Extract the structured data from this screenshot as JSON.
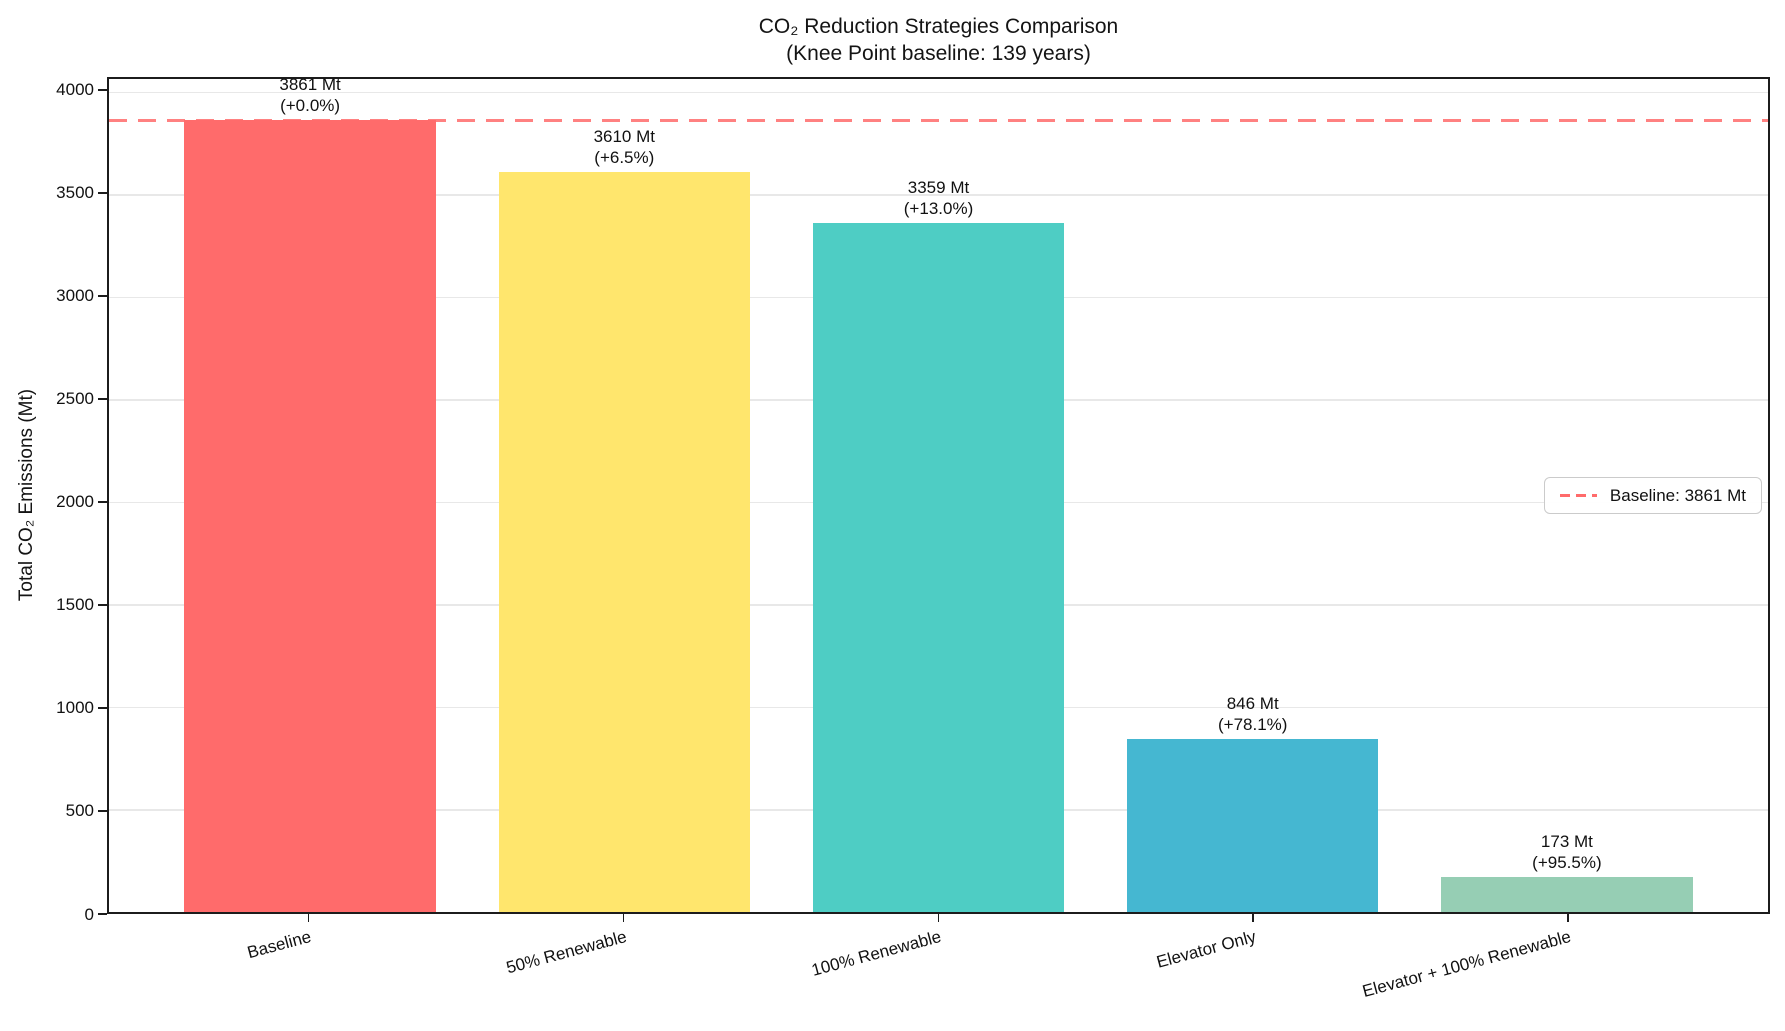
{
  "chart_data": {
    "type": "bar",
    "title": "CO₂ Reduction Strategies Comparison",
    "subtitle": "(Knee Point baseline: 139 years)",
    "xlabel": "",
    "ylabel": "Total CO₂ Emissions (Mt)",
    "ylim": [
      0,
      4063
    ],
    "yticks": [
      0,
      500,
      1000,
      1500,
      2000,
      2500,
      3000,
      3500,
      4000
    ],
    "grid": true,
    "categories": [
      "Baseline",
      "50% Renewable",
      "100% Renewable",
      "Elevator Only",
      "Elevator + 100% Renewable"
    ],
    "values": [
      3861,
      3610,
      3359,
      846,
      173
    ],
    "bars": [
      {
        "category": "Baseline",
        "value": 3861,
        "value_label": "3861 Mt",
        "pct_label": "(+0.0%)",
        "color": "#FF6B6B"
      },
      {
        "category": "50% Renewable",
        "value": 3610,
        "value_label": "3610 Mt",
        "pct_label": "(+6.5%)",
        "color": "#FFE66D"
      },
      {
        "category": "100% Renewable",
        "value": 3359,
        "value_label": "3359 Mt",
        "pct_label": "(+13.0%)",
        "color": "#4ECDC4"
      },
      {
        "category": "Elevator Only",
        "value": 846,
        "value_label": "846 Mt",
        "pct_label": "(+78.1%)",
        "color": "#45B7D1"
      },
      {
        "category": "Elevator + 100% Renewable",
        "value": 173,
        "value_label": "173 Mt",
        "pct_label": "(+95.5%)",
        "color": "#96CEB4"
      }
    ],
    "baseline": {
      "value": 3861,
      "legend_label": "Baseline: 3861 Mt",
      "color": "#FF6B6B",
      "style": "dashed"
    },
    "legend_position": "center-right",
    "bar_width_fraction": 0.8
  }
}
